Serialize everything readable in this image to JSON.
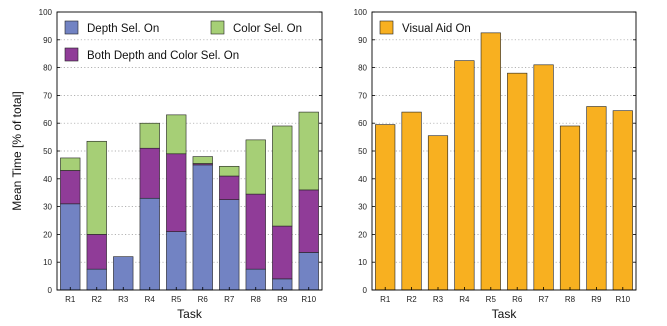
{
  "chart_data": [
    {
      "type": "bar",
      "stacked": true,
      "categories": [
        "R1",
        "R2",
        "R3",
        "R4",
        "R5",
        "R6",
        "R7",
        "R8",
        "R9",
        "R10"
      ],
      "series": [
        {
          "name": "Depth Sel. On",
          "color": "#7283c3",
          "values": [
            31,
            7.5,
            12,
            33,
            21,
            45,
            32.5,
            7.5,
            4,
            13.5
          ]
        },
        {
          "name": "Both Depth and Color Sel. On",
          "color": "#903c98",
          "values": [
            12,
            12.5,
            0,
            18,
            28,
            0.5,
            8.5,
            27,
            19,
            22.5
          ]
        },
        {
          "name": "Color Sel. On",
          "color": "#a6cf76",
          "values": [
            4.5,
            33.5,
            0,
            9,
            14,
            2.5,
            3.5,
            19.5,
            36,
            28
          ]
        }
      ],
      "legend_order": [
        "Depth Sel. On",
        "Color Sel. On",
        "Both Depth and Color Sel. On"
      ],
      "ylim": [
        0,
        100
      ],
      "yticks": [
        0,
        10,
        20,
        30,
        40,
        50,
        60,
        70,
        80,
        90,
        100
      ],
      "xlabel": "Task",
      "ylabel": "Mean Time [% of total]",
      "grid": "horizontal dotted",
      "legend_position": "top-left"
    },
    {
      "type": "bar",
      "categories": [
        "R1",
        "R2",
        "R3",
        "R4",
        "R5",
        "R6",
        "R7",
        "R8",
        "R9",
        "R10"
      ],
      "series": [
        {
          "name": "Visual Aid On",
          "color": "#f8b020",
          "values": [
            59.5,
            64,
            55.5,
            82.5,
            92.5,
            78,
            81,
            59,
            66,
            64.5
          ]
        }
      ],
      "ylim": [
        0,
        100
      ],
      "yticks": [
        0,
        10,
        20,
        30,
        40,
        50,
        60,
        70,
        80,
        90,
        100
      ],
      "xlabel": "Task",
      "ylabel": "",
      "grid": "horizontal dotted",
      "legend_position": "top-left"
    }
  ]
}
